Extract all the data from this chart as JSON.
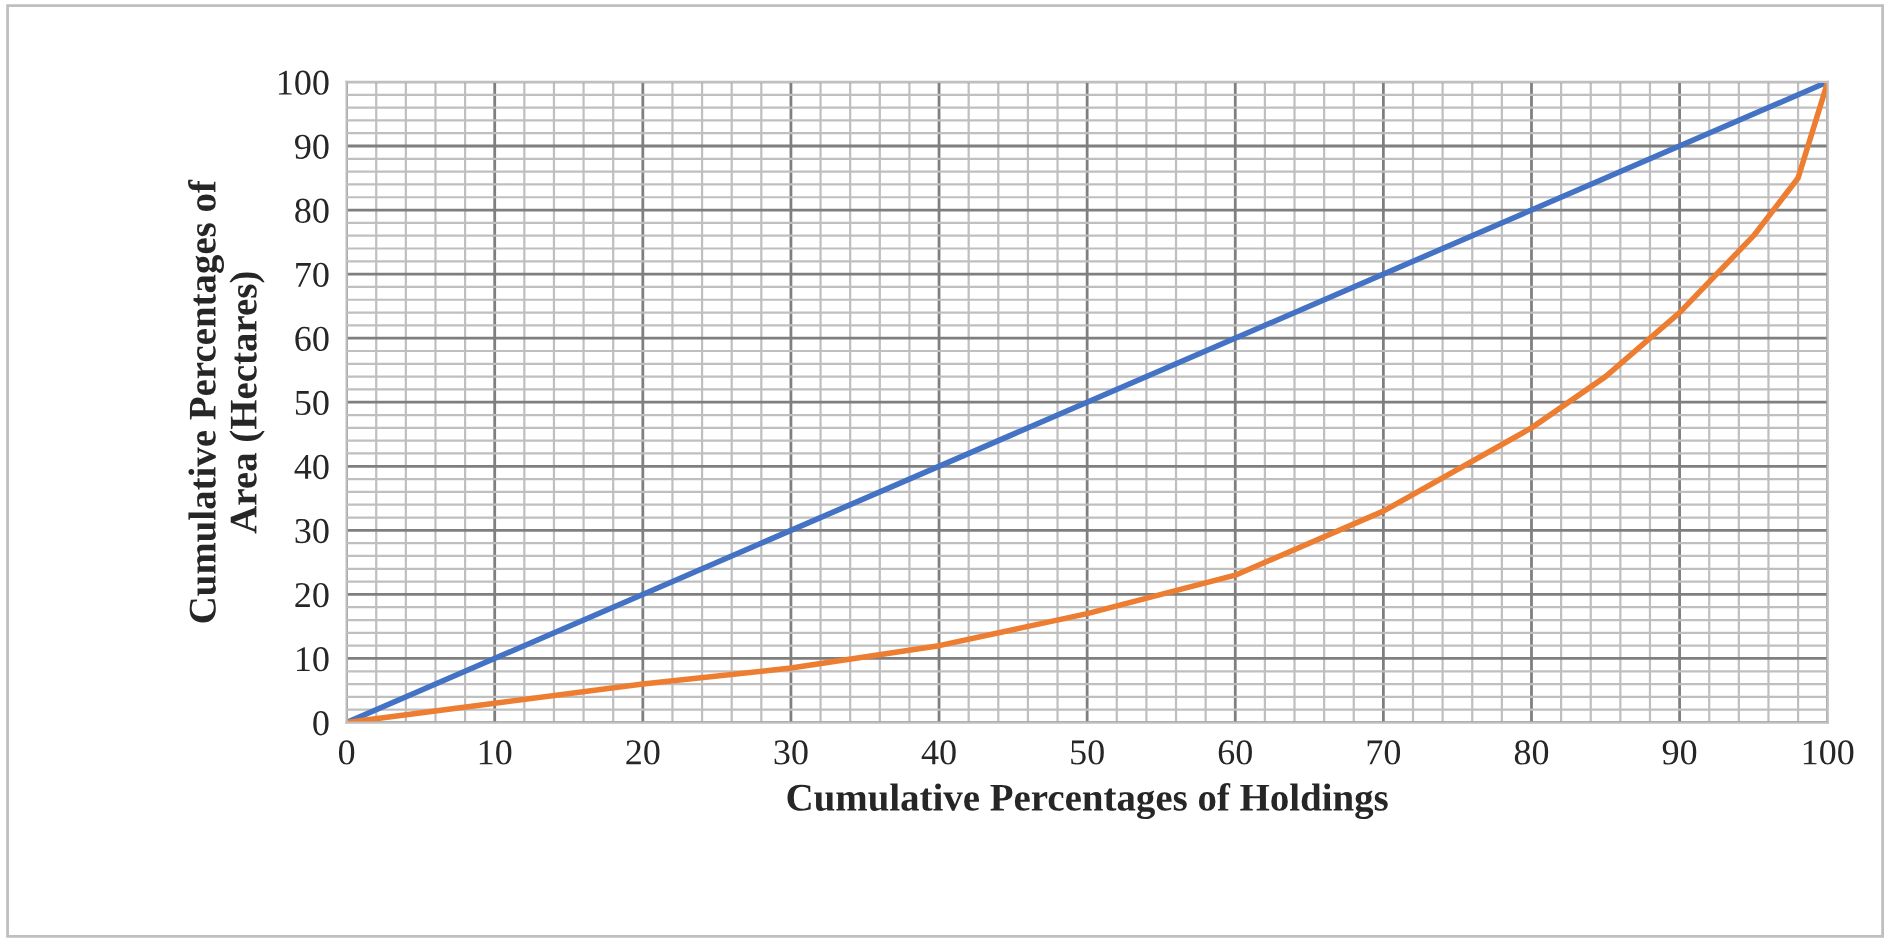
{
  "chart_data": {
    "type": "line",
    "xlabel": "Cumulative Percentages of Holdings",
    "ylabel": "Cumulative Percentages of\nArea (Hectares)",
    "series": [
      {
        "color": "#4472c4",
        "x": [
          0,
          100
        ],
        "values": [
          0,
          100
        ]
      },
      {
        "color": "#ed7d31",
        "x": [
          0,
          10,
          20,
          30,
          40,
          50,
          60,
          70,
          80,
          85,
          90,
          95,
          98,
          100
        ],
        "values": [
          0,
          3,
          6,
          8.5,
          12,
          17,
          23,
          33,
          46,
          54,
          64,
          76,
          85,
          100
        ]
      }
    ],
    "xlim": [
      0,
      100
    ],
    "ylim": [
      0,
      100
    ],
    "xticks": [
      0,
      10,
      20,
      30,
      40,
      50,
      60,
      70,
      80,
      90,
      100
    ],
    "yticks": [
      0,
      10,
      20,
      30,
      40,
      50,
      60,
      70,
      80,
      90,
      100
    ],
    "grid": true,
    "legend": false,
    "marker": "none",
    "line_style": "solid"
  }
}
